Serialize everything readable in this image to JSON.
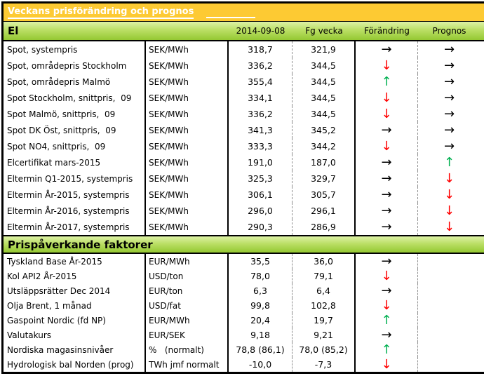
{
  "report": {
    "title": "Veckans prisförändring och prognos",
    "columns": {
      "current": "2014-09-08",
      "previous": "Fg vecka",
      "change": "Förändring",
      "prognosis": "Prognos"
    },
    "sections": [
      {
        "name": "El",
        "rows": [
          {
            "label": "Spot, systempris",
            "unit": "SEK/MWh",
            "current": "318,7",
            "previous": "321,9",
            "change": "right",
            "prognosis": "right"
          },
          {
            "label": "Spot, områdepris Stockholm",
            "unit": "SEK/MWh",
            "current": "336,2",
            "previous": "344,5",
            "change": "down",
            "prognosis": "right"
          },
          {
            "label": "Spot, områdepris Malmö",
            "unit": "SEK/MWh",
            "current": "355,4",
            "previous": "344,5",
            "change": "up",
            "prognosis": "right"
          },
          {
            "label": "Spot Stockholm, snittpris,  09",
            "unit": "SEK/MWh",
            "current": "334,1",
            "previous": "344,5",
            "change": "down",
            "prognosis": "right"
          },
          {
            "label": "Spot Malmö, snittpris,  09",
            "unit": "SEK/MWh",
            "current": "336,2",
            "previous": "344,5",
            "change": "down",
            "prognosis": "right"
          },
          {
            "label": "Spot DK Öst, snittpris,  09",
            "unit": "SEK/MWh",
            "current": "341,3",
            "previous": "345,2",
            "change": "right",
            "prognosis": "right"
          },
          {
            "label": "Spot NO4, snittpris,  09",
            "unit": "SEK/MWh",
            "current": "333,3",
            "previous": "344,2",
            "change": "down",
            "prognosis": "right"
          },
          {
            "label": "Elcertifikat mars-2015",
            "unit": "SEK/MWh",
            "current": "191,0",
            "previous": "187,0",
            "change": "right",
            "prognosis": "up"
          },
          {
            "label": "Eltermin Q1-2015, systempris",
            "unit": "SEK/MWh",
            "current": "325,3",
            "previous": "329,7",
            "change": "right",
            "prognosis": "down"
          },
          {
            "label": "Eltermin År-2015, systempris",
            "unit": "SEK/MWh",
            "current": "306,1",
            "previous": "305,7",
            "change": "right",
            "prognosis": "down"
          },
          {
            "label": "Eltermin År-2016, systempris",
            "unit": "SEK/MWh",
            "current": "296,0",
            "previous": "296,1",
            "change": "right",
            "prognosis": "down"
          },
          {
            "label": "Eltermin År-2017, systempris",
            "unit": "SEK/MWh",
            "current": "290,3",
            "previous": "286,9",
            "change": "right",
            "prognosis": "down"
          }
        ]
      },
      {
        "name": "Prispåverkande faktorer",
        "rows": [
          {
            "label": "Tyskland Base År-2015",
            "unit": "EUR/MWh",
            "current": "35,5",
            "previous": "36,0",
            "change": "right",
            "prognosis": "none"
          },
          {
            "label": "Kol API2 År-2015",
            "unit": "USD/ton",
            "current": "78,0",
            "previous": "79,1",
            "change": "down",
            "prognosis": "none"
          },
          {
            "label": "Utsläppsrätter Dec 2014",
            "unit": "EUR/ton",
            "current": "6,3",
            "previous": "6,4",
            "change": "right",
            "prognosis": "none"
          },
          {
            "label": "Olja Brent, 1 månad",
            "unit": "USD/fat",
            "current": "99,8",
            "previous": "102,8",
            "change": "down",
            "prognosis": "none"
          },
          {
            "label": "Gaspoint Nordic (fd NP)",
            "unit": "EUR/MWh",
            "current": "20,4",
            "previous": "19,7",
            "change": "up",
            "prognosis": "none"
          },
          {
            "label": "Valutakurs",
            "unit": "EUR/SEK",
            "current": "9,18",
            "previous": "9,21",
            "change": "right",
            "prognosis": "none"
          },
          {
            "label": "Nordiska magasinsnivåer",
            "unit": "%   (normalt)",
            "current": "78,8 (86,1)",
            "previous": "78,0 (85,2)",
            "change": "up",
            "prognosis": "none"
          },
          {
            "label": "Hydrologisk bal Norden (prog)",
            "unit": "TWh jmf normalt",
            "current": "-10,0",
            "previous": "-7,3",
            "change": "down",
            "prognosis": "none"
          }
        ]
      }
    ],
    "arrow_glyphs": {
      "right": "→",
      "down": "↓",
      "up": "↑",
      "none": ""
    },
    "colors": {
      "header_orange": "#FDCA33",
      "header_green_light": "#DDF2A6",
      "header_green_dark": "#94C832",
      "arrow_right": "#000000",
      "arrow_down": "#FF0000",
      "arrow_up": "#00B050"
    }
  }
}
